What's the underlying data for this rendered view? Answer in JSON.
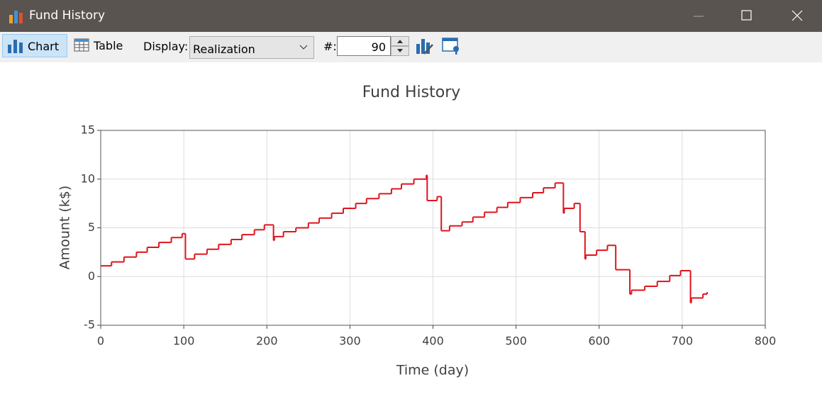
{
  "window": {
    "title": "Fund History"
  },
  "toolbar": {
    "chart_button": "Chart",
    "table_button": "Table",
    "display_label": "Display:",
    "display_value": "Realization",
    "count_label": "#:",
    "count_value": "90"
  },
  "chart_data": {
    "type": "line",
    "step": "post",
    "title": "Fund History",
    "x_label": "Time (day)",
    "y_label": "Amount (k$)",
    "x": [
      0,
      13,
      28,
      43,
      56,
      70,
      85,
      98,
      102,
      113,
      128,
      142,
      157,
      170,
      185,
      197,
      208,
      209,
      220,
      235,
      250,
      263,
      278,
      292,
      307,
      320,
      335,
      350,
      362,
      377,
      392,
      393,
      405,
      410,
      420,
      435,
      448,
      462,
      477,
      490,
      505,
      520,
      533,
      547,
      557,
      558,
      570,
      577,
      583,
      584,
      597,
      610,
      620,
      637,
      639,
      655,
      670,
      685,
      698,
      710,
      711,
      725,
      730
    ],
    "values": [
      1.1,
      1.5,
      2.0,
      2.5,
      3.0,
      3.5,
      4.0,
      4.4,
      1.8,
      2.3,
      2.8,
      3.3,
      3.8,
      4.3,
      4.8,
      5.3,
      3.7,
      4.1,
      4.6,
      5.0,
      5.5,
      6.0,
      6.5,
      7.0,
      7.5,
      8.0,
      8.5,
      9.0,
      9.5,
      10.0,
      10.4,
      7.8,
      8.2,
      4.7,
      5.2,
      5.6,
      6.1,
      6.6,
      7.1,
      7.6,
      8.1,
      8.6,
      9.1,
      9.6,
      6.5,
      7.0,
      7.5,
      4.6,
      1.8,
      2.2,
      2.7,
      3.2,
      0.7,
      -1.8,
      -1.4,
      -1.0,
      -0.5,
      0.1,
      0.6,
      -2.7,
      -2.2,
      -1.8,
      -1.6
    ],
    "color": "#e0141c",
    "xlim": [
      0,
      800
    ],
    "xticks": [
      0,
      100,
      200,
      300,
      400,
      500,
      600,
      700,
      800
    ],
    "ylim": [
      -5,
      15
    ],
    "yticks": [
      -5,
      0,
      5,
      10,
      15
    ],
    "grid": true
  }
}
